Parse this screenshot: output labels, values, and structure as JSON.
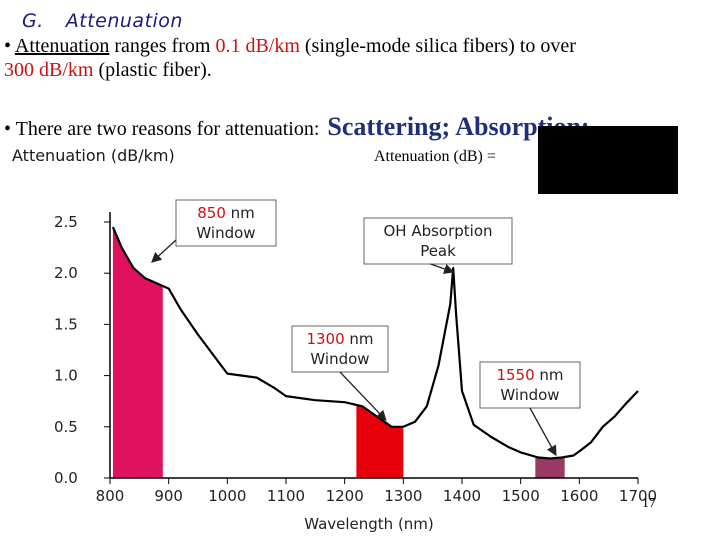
{
  "heading": {
    "number": "G.",
    "title": "Attenuation"
  },
  "bullet1": {
    "marker": "•",
    "term": "Attenuation",
    "text_a": " ranges from ",
    "value_low": "0.1 dB/km",
    "text_b": " (single-mode silica fibers) to over ",
    "value_high": "300 dB/km",
    "text_c": " (plastic fiber)."
  },
  "bullet2": {
    "marker": "•",
    "text": "There are two reasons for attenuation:",
    "reasons": "Scattering; Absorption;"
  },
  "formula_label": "Attenuation (dB) =",
  "slide_number": "17",
  "colors": {
    "curve": "#000000",
    "window_850": "#e0115f",
    "window_1300": "#e8000b",
    "window_1550": "#9a3a66"
  },
  "chart_data": {
    "type": "line",
    "ylabel": "Attenuation (dB/km)",
    "xlabel": "Wavelength (nm)",
    "xlim": [
      800,
      1700
    ],
    "ylim": [
      0,
      2.5
    ],
    "x_ticks": [
      "800",
      "900",
      "1000",
      "1100",
      "1200",
      "1300",
      "1400",
      "1500",
      "1600",
      "1700"
    ],
    "y_ticks": [
      "0.0",
      "0.5",
      "1.0",
      "1.5",
      "2.0",
      "2.5"
    ],
    "series": [
      {
        "x": [
          805,
          820,
          840,
          860,
          880,
          900,
          920,
          950,
          1000,
          1050,
          1080,
          1100,
          1150,
          1200,
          1230,
          1250,
          1280,
          1300,
          1320,
          1340,
          1360,
          1380,
          1385,
          1390,
          1400,
          1420,
          1450,
          1480,
          1500,
          1530,
          1550,
          1570,
          1590,
          1600,
          1620,
          1640,
          1660,
          1680,
          1700
        ],
        "y": [
          2.45,
          2.25,
          2.05,
          1.95,
          1.9,
          1.85,
          1.65,
          1.4,
          1.02,
          0.98,
          0.88,
          0.8,
          0.76,
          0.74,
          0.7,
          0.62,
          0.5,
          0.5,
          0.55,
          0.7,
          1.1,
          1.7,
          2.05,
          1.6,
          0.85,
          0.52,
          0.4,
          0.3,
          0.25,
          0.2,
          0.19,
          0.2,
          0.22,
          0.26,
          0.35,
          0.5,
          0.6,
          0.73,
          0.85
        ]
      }
    ],
    "windows": [
      {
        "from": 805,
        "to": 890,
        "color_key": "window_850"
      },
      {
        "from": 1220,
        "to": 1300,
        "color_key": "window_1300"
      },
      {
        "from": 1525,
        "to": 1575,
        "color_key": "window_1550"
      }
    ],
    "annotations": [
      {
        "label_num": "850",
        "label_rest": " nm",
        "line2": "Window",
        "num_color": "#cc1111",
        "target_x": 850,
        "target_y": 1.95
      },
      {
        "label_num": "OH Absorption",
        "label_rest": "",
        "line2": "Peak",
        "num_color": "#222222",
        "target_x": 1385,
        "target_y": 2.05
      },
      {
        "label_num": "1300",
        "label_rest": " nm",
        "line2": "Window",
        "num_color": "#cc1111",
        "target_x": 1270,
        "target_y": 0.52
      },
      {
        "label_num": "1550",
        "label_rest": " nm",
        "line2": "Window",
        "num_color": "#cc1111",
        "target_x": 1560,
        "target_y": 0.2
      }
    ]
  }
}
